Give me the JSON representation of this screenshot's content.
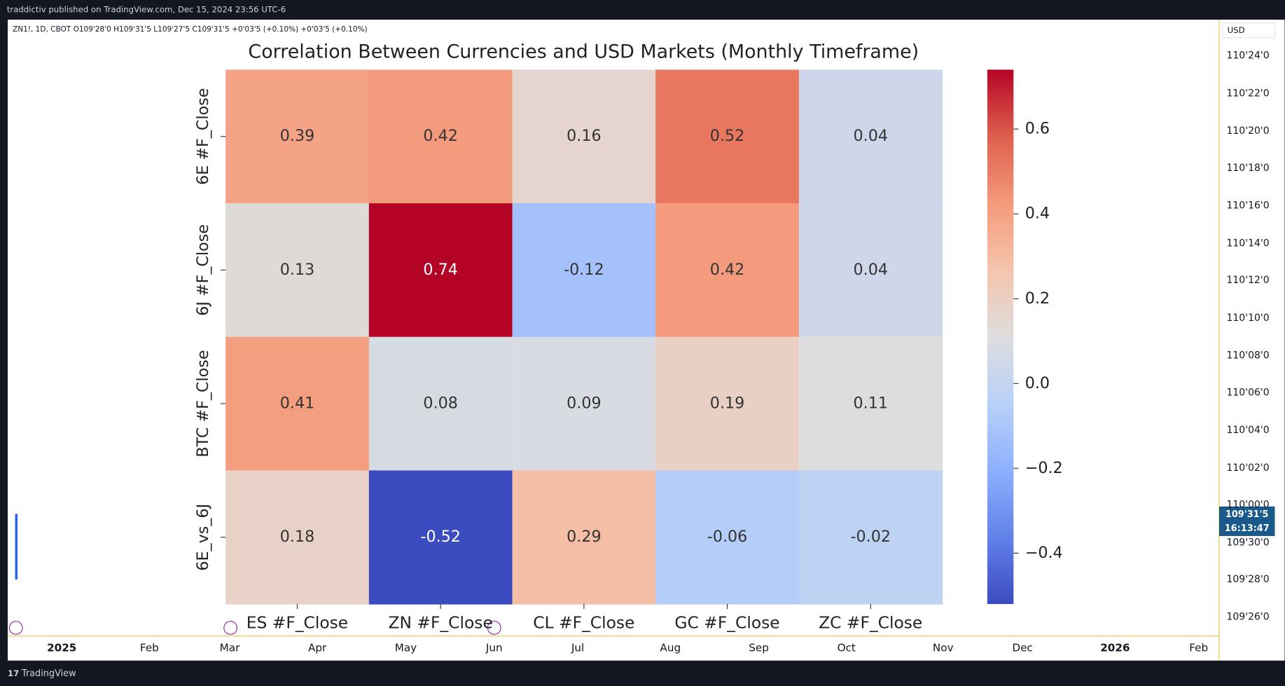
{
  "header": {
    "publisher": "traddictiv published on TradingView.com, Dec 15, 2024 23:56 UTC-6",
    "symbol_info": "ZN1!, 1D, CBOT  O109'28'0  H109'31'5  L109'27'5  C109'31'5  +0'03'5 (+0.10%)  +0'03'5 (+0.10%)"
  },
  "chart_data": {
    "type": "heatmap",
    "title": "Correlation Between Currencies and USD Markets (Monthly Timeframe)",
    "x_categories": [
      "ES #F_Close",
      "ZN #F_Close",
      "CL #F_Close",
      "GC #F_Close",
      "ZC #F_Close"
    ],
    "y_categories": [
      "6E #F_Close",
      "6J #F_Close",
      "BTC #F_Close",
      "6E_vs_6J"
    ],
    "values": [
      [
        0.39,
        0.42,
        0.16,
        0.52,
        0.04
      ],
      [
        0.13,
        0.74,
        -0.12,
        0.42,
        0.04
      ],
      [
        0.41,
        0.08,
        0.09,
        0.19,
        0.11
      ],
      [
        0.18,
        -0.52,
        0.29,
        -0.06,
        -0.02
      ]
    ],
    "colormap": "coolwarm",
    "zlim": [
      -0.52,
      0.74
    ],
    "zticks": [
      {
        "value": -0.4,
        "label": "−0.4"
      },
      {
        "value": -0.2,
        "label": "−0.2"
      },
      {
        "value": 0,
        "label": "0.0"
      },
      0.2,
      0.4,
      0.6
    ]
  },
  "price_axis": {
    "currency": "USD",
    "labels": [
      "110'24'0",
      "110'22'0",
      "110'20'0",
      "110'18'0",
      "110'16'0",
      "110'14'0",
      "110'12'0",
      "110'10'0",
      "110'08'0",
      "110'06'0",
      "110'04'0",
      "110'02'0",
      "110'00'0",
      "109'30'0",
      "109'28'0",
      "109'26'0"
    ],
    "last_price": "109'31'5",
    "countdown": "16:13:47"
  },
  "time_axis": {
    "labels": [
      "2025",
      "Feb",
      "Mar",
      "Apr",
      "May",
      "Jun",
      "Jul",
      "Aug",
      "Sep",
      "Oct",
      "Nov",
      "Dec",
      "2026",
      "Feb"
    ]
  },
  "footer": {
    "brand": "TradingView"
  }
}
